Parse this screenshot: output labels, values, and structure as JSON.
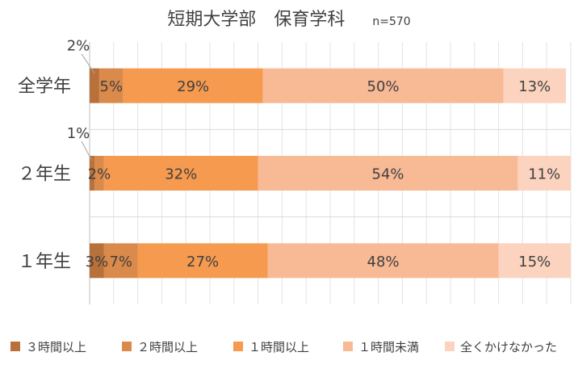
{
  "title": "短期大学部　保育学科",
  "sample_size": "n=570",
  "chart_data": {
    "type": "bar",
    "orientation": "horizontal",
    "stacked": "100%",
    "title": "短期大学部　保育学科",
    "categories": [
      "全学年",
      "2年生",
      "1年生"
    ],
    "category_labels": [
      "全学年",
      "２年生",
      "１年生"
    ],
    "series": [
      {
        "name": "３時間以上",
        "color": "#B8713A",
        "values": [
          2,
          1,
          3
        ],
        "labels": [
          "2%",
          "1%",
          "3%"
        ]
      },
      {
        "name": "２時間以上",
        "color": "#DA8A4A",
        "values": [
          5,
          2,
          7
        ],
        "labels": [
          "5%",
          "2%",
          "7%"
        ]
      },
      {
        "name": "１時間以上",
        "color": "#F59A4F",
        "values": [
          29,
          32,
          27
        ],
        "labels": [
          "29%",
          "32%",
          "27%"
        ]
      },
      {
        "name": "１時間未満",
        "color": "#F8B995",
        "values": [
          50,
          54,
          48
        ],
        "labels": [
          "50%",
          "54%",
          "48%"
        ]
      },
      {
        "name": "全くかけなかった",
        "color": "#FBD3BE",
        "values": [
          13,
          11,
          15
        ],
        "labels": [
          "13%",
          "11%",
          "15%"
        ]
      }
    ],
    "xlim": [
      0,
      100
    ],
    "grid": true,
    "legend": "bottom"
  }
}
